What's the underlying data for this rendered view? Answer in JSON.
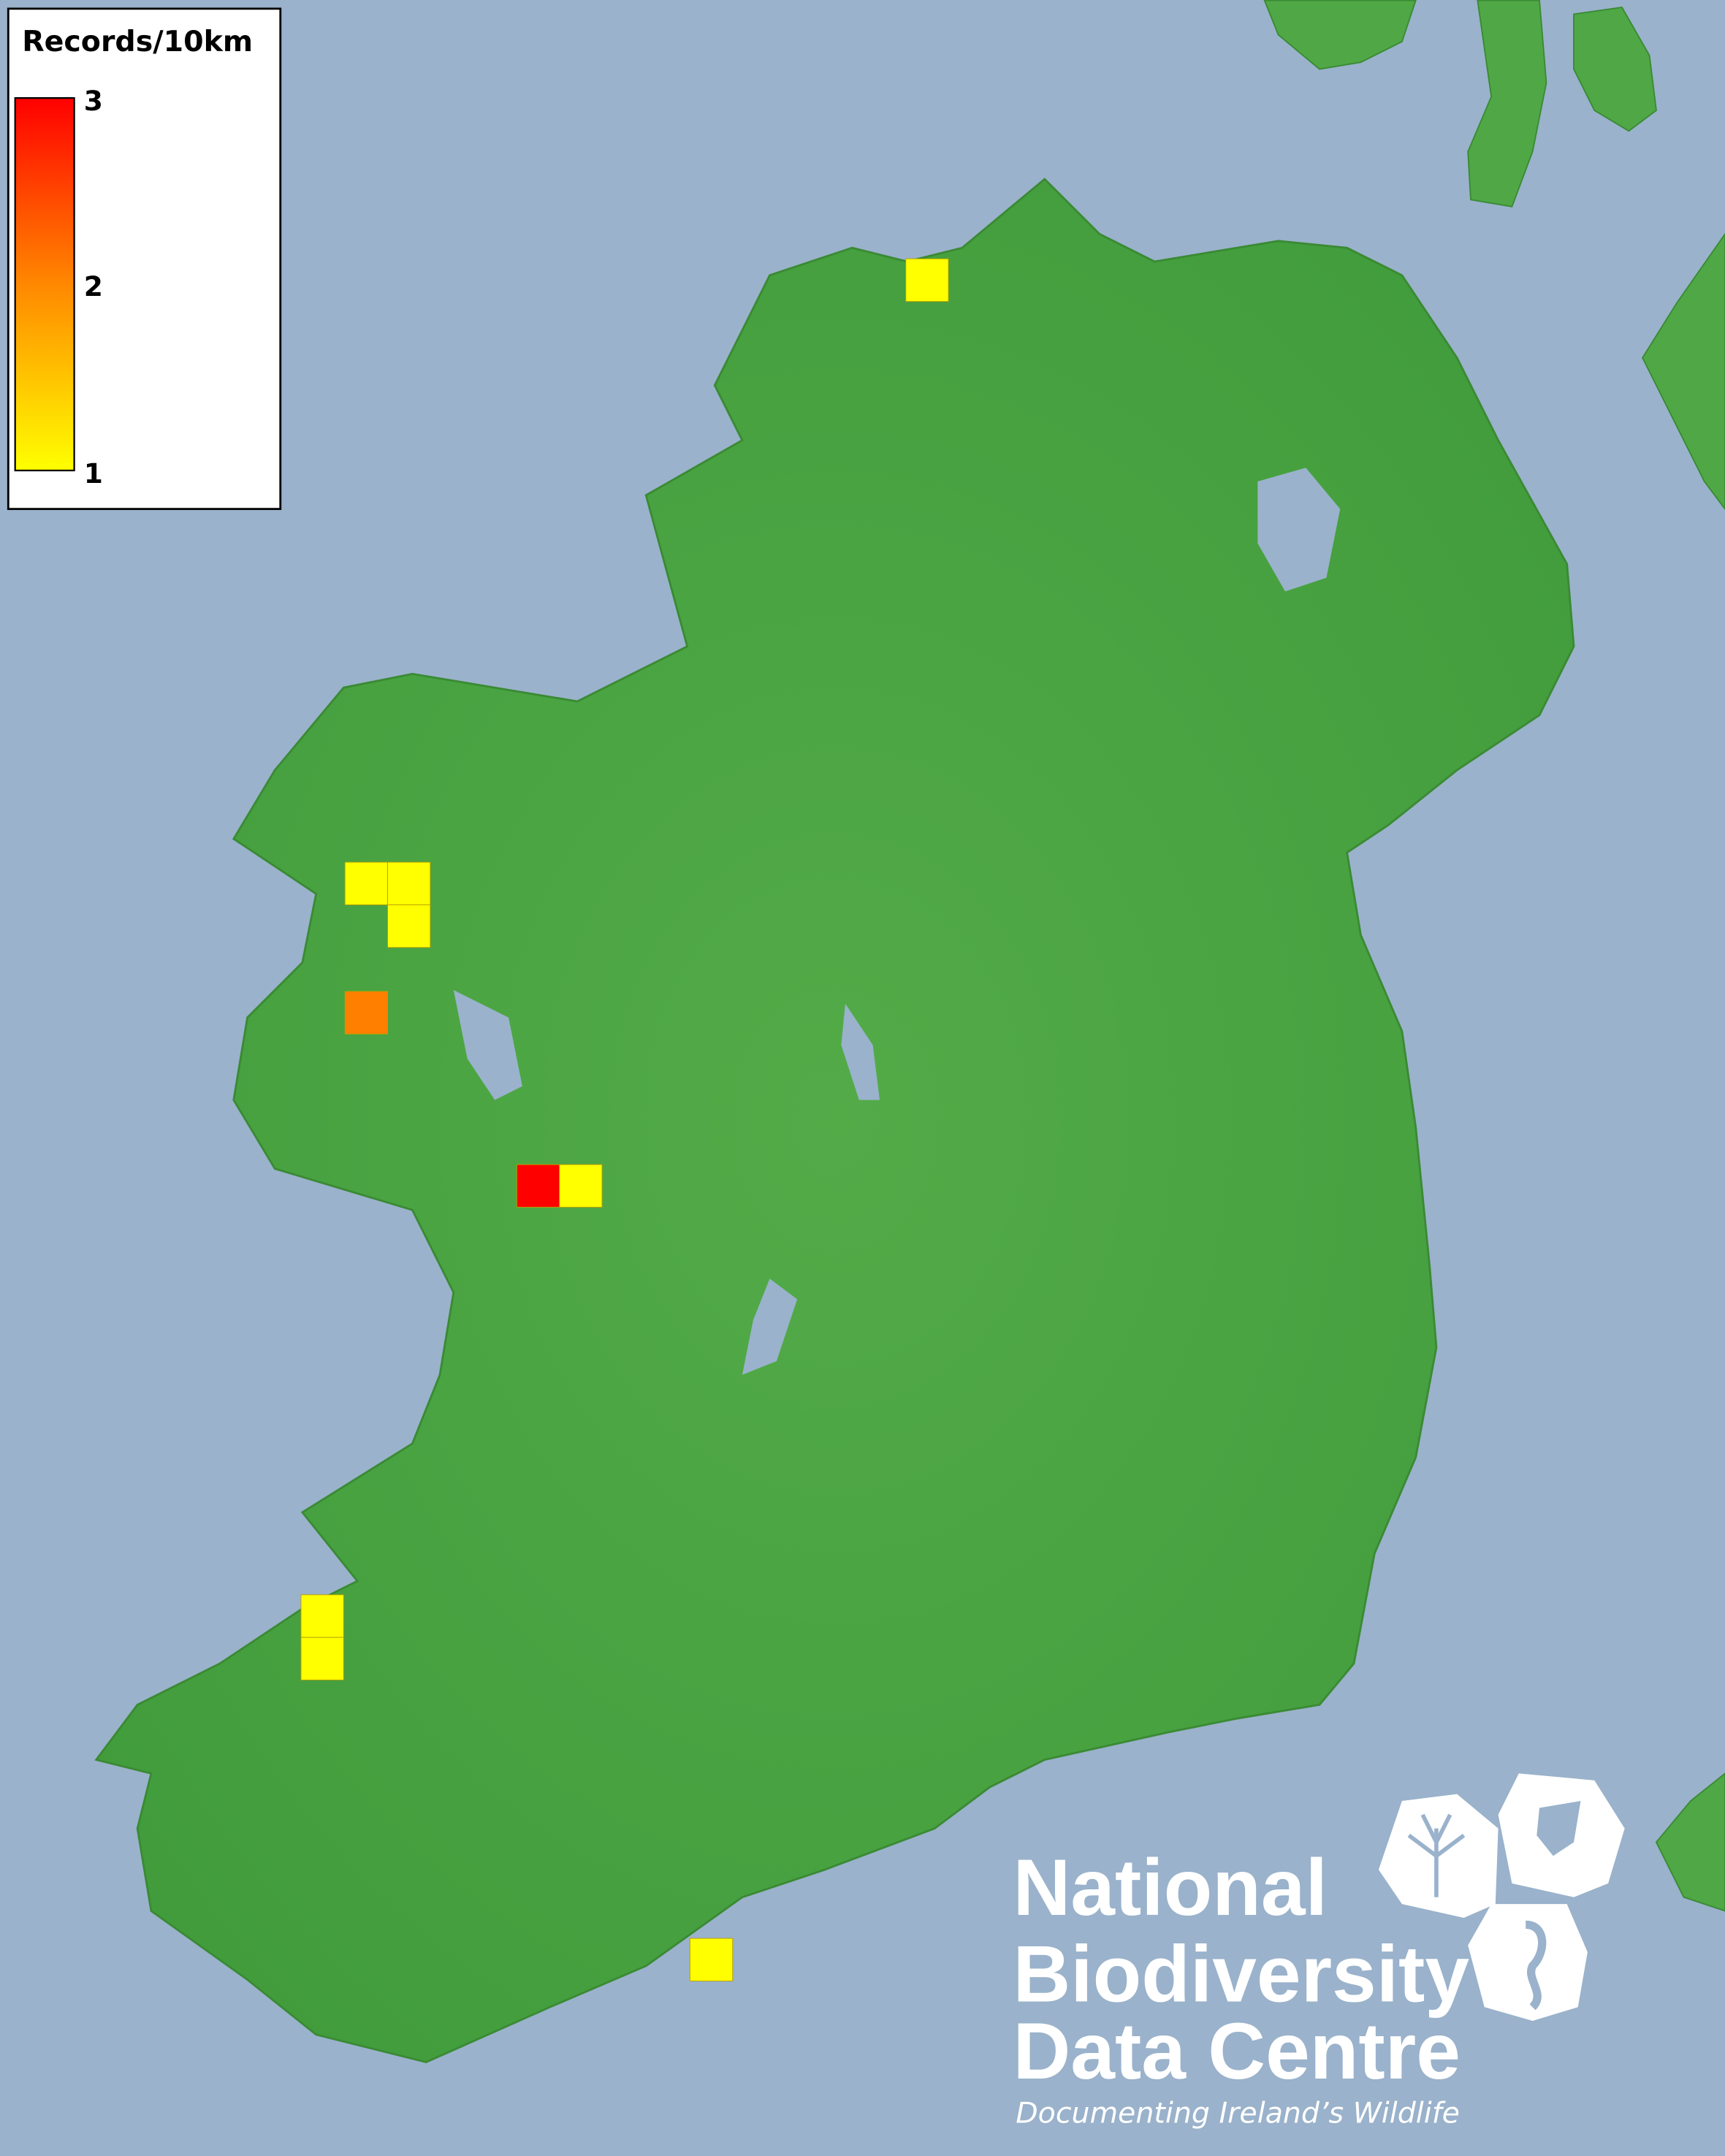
{
  "legend": {
    "title": "Records/10km",
    "max_label": "3",
    "mid_label": "2",
    "min_label": "1",
    "colors": {
      "min": "#ffff00",
      "mid": "#ff8800",
      "max": "#ff0000"
    }
  },
  "map": {
    "sea_color": "#9ab2cb",
    "land_color": "#4fa845",
    "records": [
      {
        "area": "north-donegal",
        "count": 1
      },
      {
        "area": "north-mayo-1",
        "count": 1
      },
      {
        "area": "north-mayo-2",
        "count": 1
      },
      {
        "area": "north-mayo-3",
        "count": 1
      },
      {
        "area": "west-mayo",
        "count": 2
      },
      {
        "area": "galway-bay-1",
        "count": 3
      },
      {
        "area": "galway-bay-2",
        "count": 1
      },
      {
        "area": "kerry-1",
        "count": 1
      },
      {
        "area": "kerry-2",
        "count": 1
      },
      {
        "area": "south-cork",
        "count": 1
      }
    ]
  },
  "logo": {
    "line1": "National",
    "line2": "Biodiversity",
    "line3": "Data Centre",
    "tagline": "Documenting Ireland’s Wildlife"
  }
}
